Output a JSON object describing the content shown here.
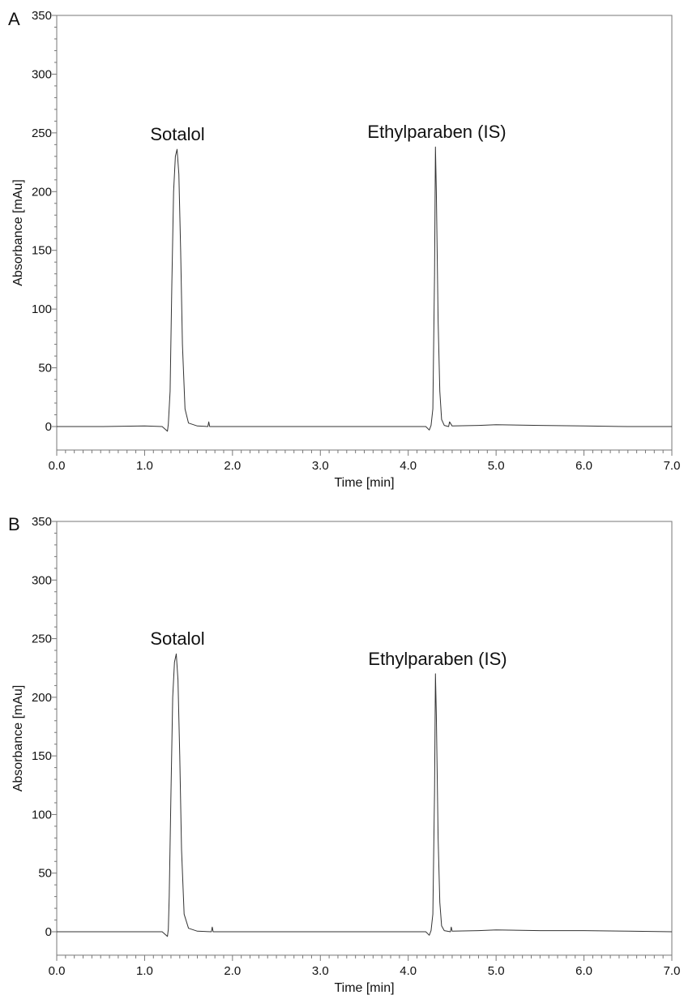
{
  "chart_data": [
    {
      "type": "line",
      "panel_label": "A",
      "xlabel": "Time [min]",
      "ylabel": "Absorbance [mAu]",
      "xlim": [
        0.0,
        7.0
      ],
      "ylim": [
        -20,
        350
      ],
      "x_ticks": [
        "0.0",
        "1.0",
        "2.0",
        "3.0",
        "4.0",
        "5.0",
        "6.0",
        "7.0"
      ],
      "y_ticks": [
        "0",
        "50",
        "100",
        "150",
        "200",
        "250",
        "300",
        "350"
      ],
      "grid": false,
      "line_color": "#333333",
      "peaks": [
        {
          "label": "Sotalol",
          "rt": 1.37,
          "height": 236
        },
        {
          "label": "Ethylparaben (IS)",
          "rt": 4.31,
          "height": 238
        }
      ],
      "series": [
        {
          "x": [
            0.0,
            0.5,
            1.0,
            1.2,
            1.26,
            1.27,
            1.29,
            1.31,
            1.33,
            1.35,
            1.37,
            1.39,
            1.41,
            1.43,
            1.46,
            1.5,
            1.6,
            1.72,
            1.73,
            1.74,
            2.0,
            3.0,
            4.0,
            4.2,
            4.24,
            4.26,
            4.28,
            4.3,
            4.31,
            4.32,
            4.34,
            4.36,
            4.38,
            4.41,
            4.46,
            4.47,
            4.5,
            4.8,
            5.0,
            5.5,
            6.0,
            6.5,
            7.0
          ],
          "y": [
            0,
            0,
            0.5,
            0,
            -4,
            2,
            30,
            120,
            200,
            230,
            236,
            215,
            150,
            70,
            15,
            3,
            0.5,
            0,
            4,
            0,
            0,
            0,
            0,
            0,
            -3,
            1,
            15,
            130,
            238,
            200,
            90,
            30,
            6,
            1,
            0,
            4,
            0.5,
            1,
            1.5,
            1,
            0.5,
            0,
            0
          ]
        }
      ]
    },
    {
      "type": "line",
      "panel_label": "B",
      "xlabel": "Time [min]",
      "ylabel": "Absorbance [mAu]",
      "xlim": [
        0.0,
        7.0
      ],
      "ylim": [
        -20,
        350
      ],
      "x_ticks": [
        "0.0",
        "1.0",
        "2.0",
        "3.0",
        "4.0",
        "5.0",
        "6.0",
        "7.0"
      ],
      "y_ticks": [
        "0",
        "50",
        "100",
        "150",
        "200",
        "250",
        "300",
        "350"
      ],
      "grid": false,
      "line_color": "#333333",
      "peaks": [
        {
          "label": "Sotalol",
          "rt": 1.36,
          "height": 237
        },
        {
          "label": "Ethylparaben (IS)",
          "rt": 4.31,
          "height": 220
        }
      ],
      "series": [
        {
          "x": [
            0.0,
            0.5,
            1.0,
            1.2,
            1.26,
            1.27,
            1.28,
            1.3,
            1.32,
            1.34,
            1.36,
            1.38,
            1.4,
            1.42,
            1.45,
            1.5,
            1.6,
            1.76,
            1.77,
            1.78,
            2.0,
            3.0,
            4.0,
            4.2,
            4.24,
            4.26,
            4.28,
            4.3,
            4.31,
            4.32,
            4.34,
            4.36,
            4.38,
            4.41,
            4.48,
            4.49,
            4.5,
            4.8,
            5.0,
            5.5,
            6.0,
            6.5,
            7.0
          ],
          "y": [
            0,
            0,
            0,
            0,
            -4,
            2,
            30,
            120,
            200,
            230,
            237,
            215,
            150,
            70,
            15,
            3,
            0.5,
            0,
            4,
            0,
            0,
            0,
            0,
            0,
            -3,
            1,
            15,
            120,
            220,
            185,
            80,
            25,
            5,
            1,
            0,
            4,
            0.5,
            1,
            1.5,
            1,
            1,
            0.5,
            0
          ]
        }
      ]
    }
  ]
}
